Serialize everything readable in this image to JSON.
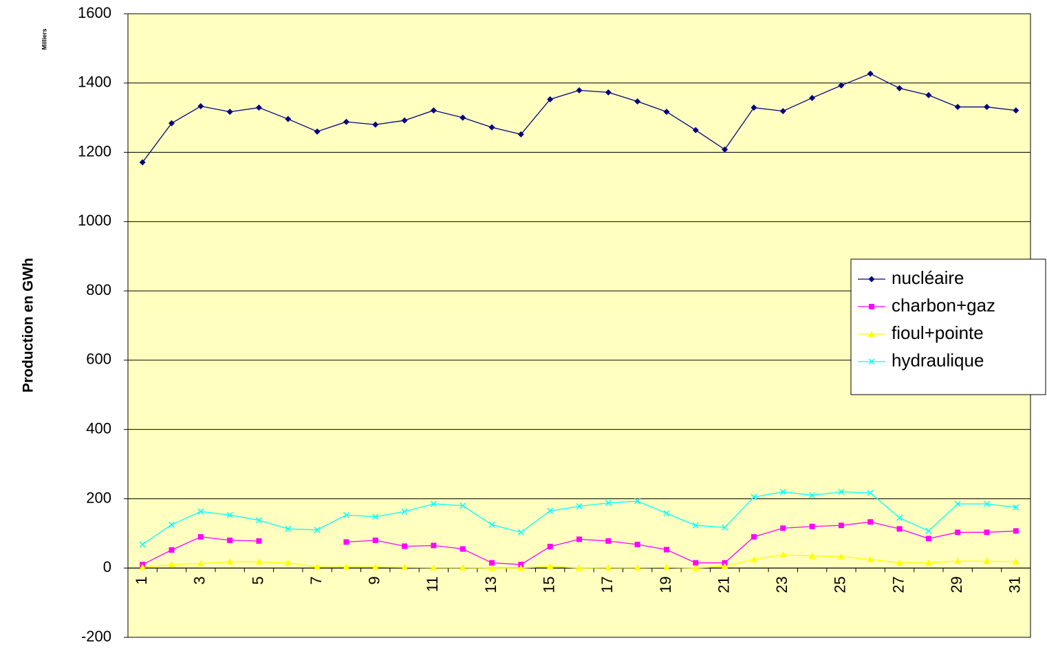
{
  "chart_data": {
    "type": "line",
    "y_label": "Production en GWh",
    "unit_note": "Milliers",
    "categories": [
      "1",
      null,
      "3",
      null,
      "5",
      null,
      "7",
      null,
      "9",
      null,
      "11",
      null,
      "13",
      null,
      "15",
      null,
      "17",
      null,
      "19",
      null,
      "21",
      null,
      "23",
      null,
      "25",
      null,
      "27",
      null,
      "29",
      null,
      "31"
    ],
    "series": [
      {
        "name": "nucléaire",
        "color": "#000080",
        "marker": "diamond",
        "values": [
          1171,
          1284,
          1333,
          1317,
          1329,
          1296,
          1260,
          1288,
          1280,
          1292,
          1321,
          1300,
          1272,
          1252,
          1353,
          1379,
          1373,
          1347,
          1317,
          1264,
          1208,
          1329,
          1319,
          1357,
          1393,
          1427,
          1385,
          1365,
          1331,
          1331,
          1321
        ]
      },
      {
        "name": "charbon+gaz",
        "color": "#ff00ff",
        "marker": "square",
        "values": [
          10,
          52,
          90,
          80,
          78,
          null,
          null,
          75,
          80,
          63,
          65,
          55,
          15,
          10,
          62,
          83,
          78,
          68,
          53,
          15,
          15,
          90,
          115,
          120,
          123,
          133,
          113,
          85,
          103,
          103,
          107
        ]
      },
      {
        "name": "fioul+pointe",
        "color": "#ffff00",
        "marker": "triangle",
        "values": [
          2,
          10,
          13,
          18,
          18,
          15,
          3,
          3,
          3,
          2,
          1,
          1,
          0,
          0,
          5,
          0,
          1,
          1,
          2,
          0,
          5,
          25,
          38,
          35,
          33,
          25,
          15,
          15,
          20,
          20,
          18
        ]
      },
      {
        "name": "hydraulique",
        "color": "#00ffff",
        "marker": "x",
        "values": [
          68,
          125,
          163,
          153,
          138,
          113,
          110,
          153,
          148,
          163,
          185,
          180,
          125,
          103,
          165,
          178,
          188,
          193,
          158,
          123,
          117,
          205,
          220,
          210,
          220,
          217,
          145,
          107,
          185,
          185,
          175
        ]
      }
    ],
    "ylim": [
      -200,
      1600
    ],
    "yticks": [
      -200,
      0,
      200,
      400,
      600,
      800,
      1000,
      1200,
      1400,
      1600
    ],
    "grid": true,
    "legend": "right",
    "plot_background": "#ffffc0"
  }
}
